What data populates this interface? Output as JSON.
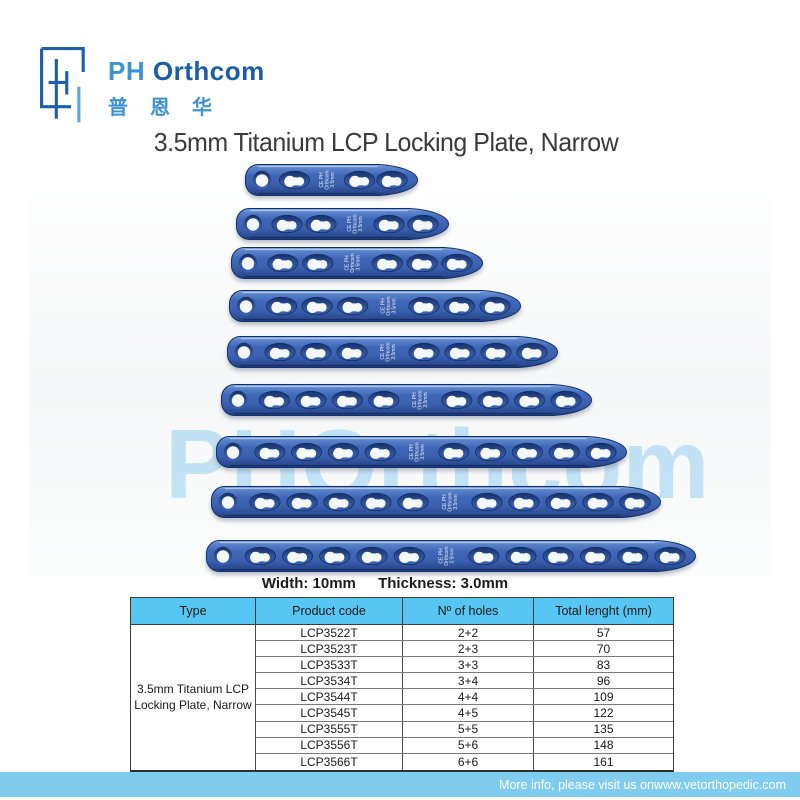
{
  "logo": {
    "ph": "PH",
    "orthcom": "Orthcom",
    "chinese": "普恩华"
  },
  "title": "3.5mm Titanium LCP Locking Plate, Narrow",
  "watermark": "PHOrthcom",
  "photo": {
    "plate_label_line1": "CE PH",
    "plate_label_line2": "Orthcom",
    "plate_label_line3": "3.5mm",
    "width_label": "Width: 10mm",
    "thickness_label": "Thickness: 3.0mm",
    "plates": [
      {
        "code": "LCP3522T",
        "holes": "2+2",
        "total_holes": 4,
        "length_mm": 57
      },
      {
        "code": "LCP3523T",
        "holes": "2+3",
        "total_holes": 5,
        "length_mm": 70
      },
      {
        "code": "LCP3533T",
        "holes": "3+3",
        "total_holes": 6,
        "length_mm": 83
      },
      {
        "code": "LCP3534T",
        "holes": "3+4",
        "total_holes": 7,
        "length_mm": 96
      },
      {
        "code": "LCP3544T",
        "holes": "4+4",
        "total_holes": 8,
        "length_mm": 109
      },
      {
        "code": "LCP3545T",
        "holes": "4+5",
        "total_holes": 9,
        "length_mm": 122
      },
      {
        "code": "LCP3555T",
        "holes": "5+5",
        "total_holes": 10,
        "length_mm": 135
      },
      {
        "code": "LCP3556T",
        "holes": "5+6",
        "total_holes": 11,
        "length_mm": 148
      },
      {
        "code": "LCP3566T",
        "holes": "6+6",
        "total_holes": 12,
        "length_mm": 161
      }
    ]
  },
  "table": {
    "headers": [
      "Type",
      "Product code",
      "Nº of holes",
      "Total lenght (mm)"
    ],
    "type_line1": "3.5mm Titanium LCP",
    "type_line2": "Locking Plate, Narrow",
    "rows": [
      [
        "LCP3522T",
        "2+2",
        "57"
      ],
      [
        "LCP3523T",
        "2+3",
        "70"
      ],
      [
        "LCP3533T",
        "3+3",
        "83"
      ],
      [
        "LCP3534T",
        "3+4",
        "96"
      ],
      [
        "LCP3544T",
        "4+4",
        "109"
      ],
      [
        "LCP3545T",
        "4+5",
        "122"
      ],
      [
        "LCP3555T",
        "5+5",
        "135"
      ],
      [
        "LCP3556T",
        "5+6",
        "148"
      ],
      [
        "LCP3566T",
        "6+6",
        "161"
      ]
    ]
  },
  "footer": {
    "text": "More info, please visit us on ",
    "url": "www.vetorthopedic.com"
  },
  "colors": {
    "brand_dark_blue": "#1a5dab",
    "brand_light_blue": "#3f93d4",
    "table_header_blue": "#58c6f2",
    "footer_blue": "#7fccee",
    "plate_blue": "#3a60ad"
  }
}
